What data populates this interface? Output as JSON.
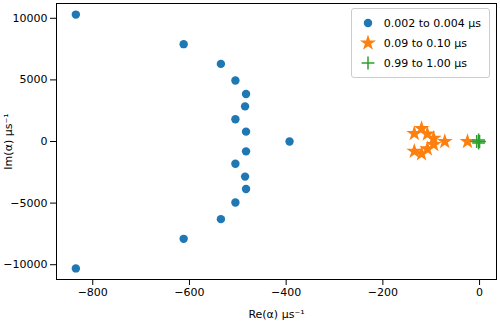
{
  "chart_data": {
    "type": "scatter",
    "x_label": "Re(α) μs⁻¹",
    "y_label": "Im(α) μs⁻¹",
    "xlim": [
      -875,
      35
    ],
    "ylim": [
      -11200,
      11200
    ],
    "xticks": [
      -800,
      -600,
      -400,
      -200,
      0
    ],
    "yticks": [
      -10000,
      -5000,
      0,
      5000,
      10000
    ],
    "grid": false,
    "legend": "upper right",
    "series": [
      {
        "name": "0.002 to 0.004 μs",
        "color": "#1f77b4",
        "marker": "circle",
        "x": [
          -835,
          -612,
          -535,
          -505,
          -483,
          -485,
          -505,
          -483,
          -393,
          -483,
          -505,
          -485,
          -483,
          -505,
          -535,
          -612,
          -835
        ],
        "y": [
          10300,
          7900,
          6300,
          4950,
          3850,
          2850,
          1800,
          800,
          0,
          -800,
          -1800,
          -2850,
          -3850,
          -4950,
          -6300,
          -7900,
          -10300
        ]
      },
      {
        "name": "0.09 to 0.10 μs",
        "color": "#ff7f0e",
        "marker": "star",
        "x": [
          -135,
          -120,
          -108,
          -95,
          -72,
          -25,
          -95,
          -108,
          -120,
          -135
        ],
        "y": [
          650,
          1050,
          600,
          250,
          0,
          0,
          -250,
          -600,
          -1000,
          -800
        ]
      },
      {
        "name": "0.99 to 1.00 μs",
        "color": "#2ca02c",
        "marker": "plus",
        "x": [
          -6,
          -2,
          -2,
          0
        ],
        "y": [
          0,
          120,
          -120,
          0
        ]
      }
    ]
  }
}
